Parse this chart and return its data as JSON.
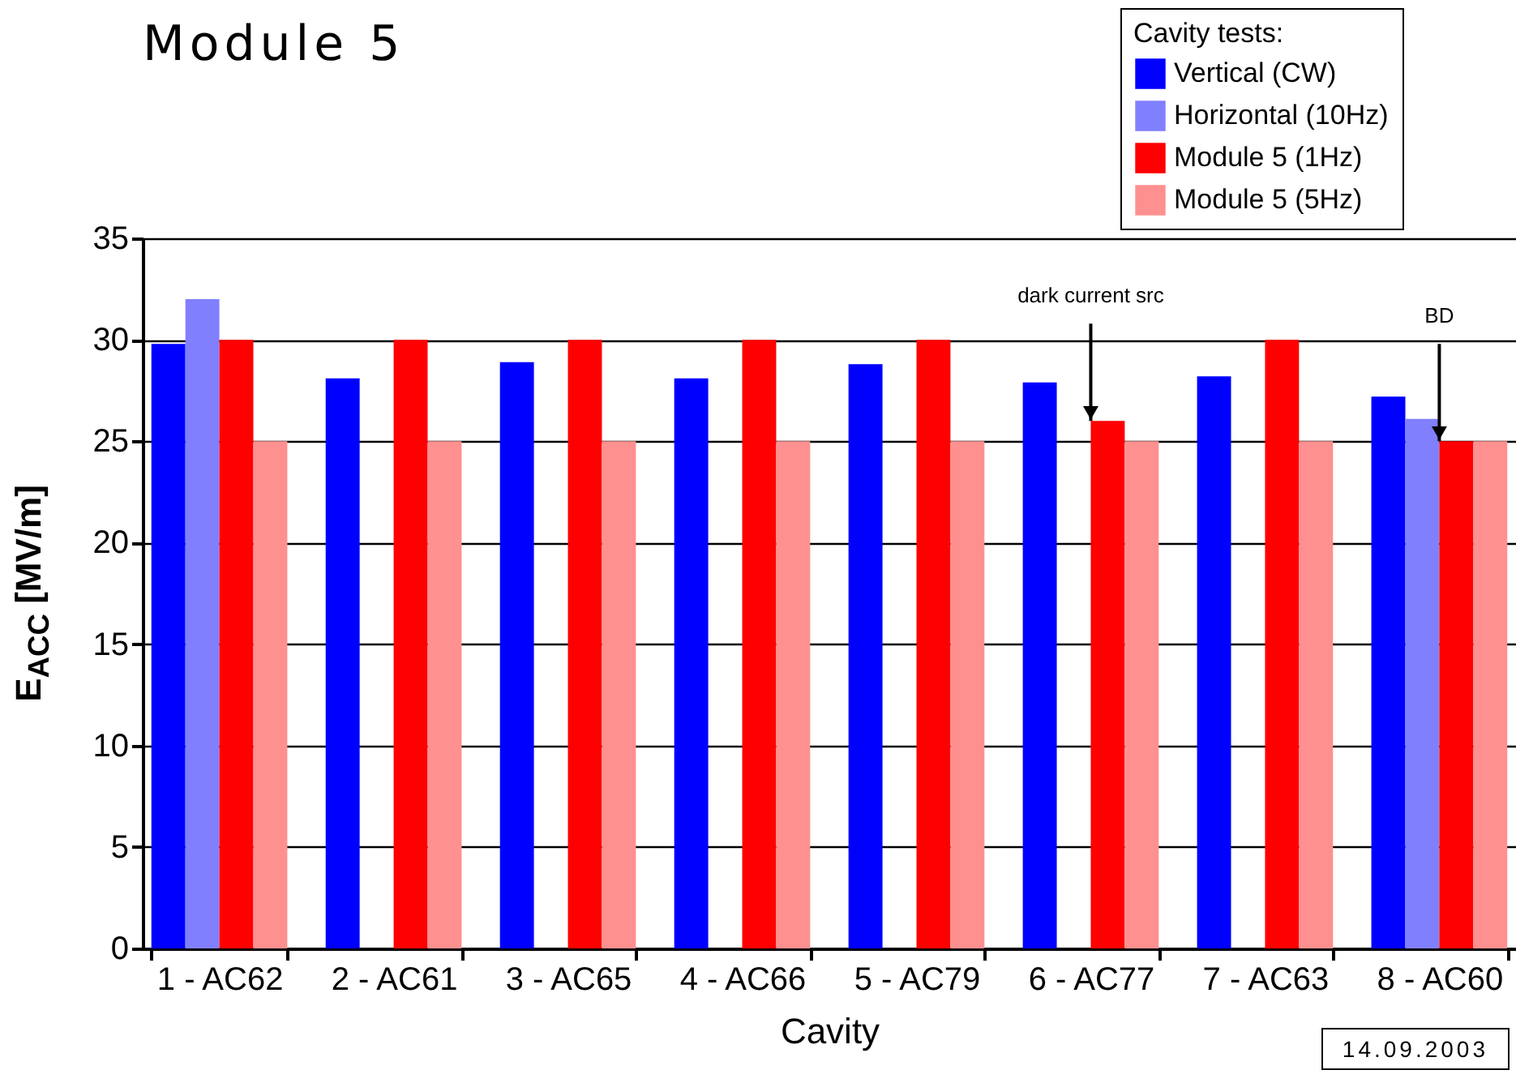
{
  "chart_data": {
    "type": "bar",
    "title": "Module 5",
    "xlabel": "Cavity",
    "ylabel": "E$_{ACC}$ [MV/m]",
    "legend_title": "Cavity tests:",
    "categories": [
      "1 - AC62",
      "2 - AC61",
      "3 - AC65",
      "4 - AC66",
      "5 - AC79",
      "6 - AC77",
      "7 - AC63",
      "8 - AC60"
    ],
    "series": [
      {
        "name": "Vertical (CW)",
        "color": "#0000ff",
        "values": [
          29.8,
          28.1,
          28.9,
          28.1,
          28.8,
          27.9,
          28.2,
          27.2
        ]
      },
      {
        "name": "Horizontal (10Hz)",
        "color": "#8080ff",
        "values": [
          32,
          null,
          null,
          null,
          null,
          null,
          null,
          26.1
        ]
      },
      {
        "name": "Module 5 (1Hz)",
        "color": "#ff0000",
        "values": [
          30,
          30,
          30,
          30,
          30,
          26,
          30,
          25
        ]
      },
      {
        "name": "Module 5 (5Hz)",
        "color": "#ff9090",
        "values": [
          25,
          25,
          25,
          25,
          25,
          25,
          25,
          25
        ]
      }
    ],
    "ylim": [
      0,
      35
    ],
    "yticks": [
      0,
      5,
      10,
      15,
      20,
      25,
      30,
      35
    ],
    "grid": "y",
    "legend": "top right",
    "annotations": [
      {
        "text": "dark current src",
        "x": "6 - AC77",
        "y": 26
      },
      {
        "text": "BD",
        "x": "8 - AC60",
        "y": 25
      },
      "14.09.2003"
    ]
  }
}
